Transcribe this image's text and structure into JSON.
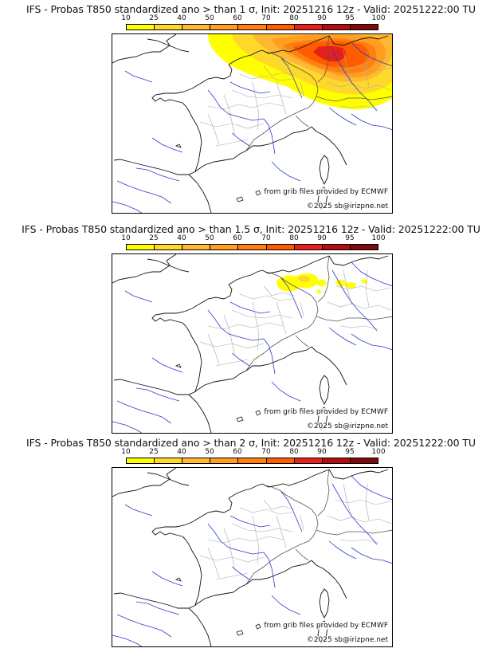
{
  "colorbar": {
    "labels": [
      "10",
      "25",
      "40",
      "50",
      "60",
      "70",
      "80",
      "90",
      "95",
      "100"
    ],
    "colors": [
      "#ffff00",
      "#ffd92a",
      "#ffb833",
      "#ff9e1f",
      "#ff8011",
      "#ff5c00",
      "#e6201a",
      "#b30d0d",
      "#7f0a0a",
      "#4a0505"
    ]
  },
  "credits": {
    "source": "from grib files provided by ECMWF",
    "copyright": "©2025 sb@irizpne.net"
  },
  "panels": [
    {
      "title": "IFS - Probas T850  standardized ano > than 1 σ, Init: 20251216 12z - Valid: 20251222:00 TU",
      "threshold_sigma": 1,
      "coverage": "wide"
    },
    {
      "title": "IFS - Probas T850  standardized ano > than 1.5 σ, Init: 20251216 12z - Valid: 20251222:00 TU",
      "threshold_sigma": 1.5,
      "coverage": "patchy"
    },
    {
      "title": "IFS - Probas T850  standardized ano > than 2 σ, Init: 20251216 12z - Valid: 20251222:00 TU",
      "threshold_sigma": 2,
      "coverage": "none"
    }
  ]
}
